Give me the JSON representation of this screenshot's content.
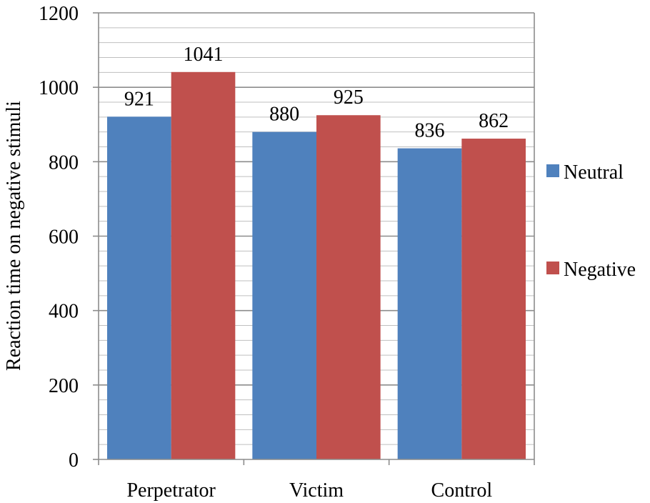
{
  "chart_data": {
    "type": "bar",
    "categories": [
      "Perpetrator",
      "Victim",
      "Control"
    ],
    "series": [
      {
        "name": "Neutral",
        "values": [
          921,
          880,
          836
        ],
        "color": "#4F81BD"
      },
      {
        "name": "Negative",
        "values": [
          1041,
          925,
          862
        ],
        "color": "#C0504D"
      }
    ],
    "data_labels": [
      [
        "921",
        "880",
        "836"
      ],
      [
        "1041",
        "925",
        "862"
      ]
    ],
    "ylabel": "Reaction time on negative stimuli",
    "xlabel": "",
    "ylim": [
      0,
      1200
    ],
    "yticks": [
      0,
      200,
      400,
      600,
      800,
      1000,
      1200
    ],
    "ytick_labels": [
      "0",
      "200",
      "400",
      "600",
      "800",
      "1000",
      "1200"
    ],
    "major_step": 200,
    "minor_step": 40,
    "grid": true,
    "legend_position": "right"
  }
}
